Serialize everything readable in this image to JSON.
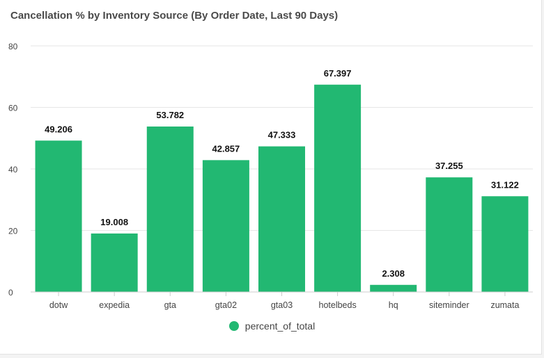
{
  "title": "Cancellation % by Inventory Source (By Order Date, Last 90 Days)",
  "colors": {
    "bar": "#22b872",
    "grid": "#e6e6e6",
    "tick_text": "#444444",
    "value_text": "#111111"
  },
  "chart_data": {
    "type": "bar",
    "categories": [
      "dotw",
      "expedia",
      "gta",
      "gta02",
      "gta03",
      "hotelbeds",
      "hq",
      "siteminder",
      "zumata"
    ],
    "series": [
      {
        "name": "percent_of_total",
        "values": [
          49.206,
          19.008,
          53.782,
          42.857,
          47.333,
          67.397,
          2.308,
          37.255,
          31.122
        ]
      }
    ],
    "value_labels": [
      "49.206",
      "19.008",
      "53.782",
      "42.857",
      "47.333",
      "67.397",
      "2.308",
      "37.255",
      "31.122"
    ],
    "ylim": [
      0,
      80
    ],
    "yticks": [
      0,
      20,
      40,
      60,
      80
    ],
    "grid": true,
    "legend_position": "bottom"
  }
}
